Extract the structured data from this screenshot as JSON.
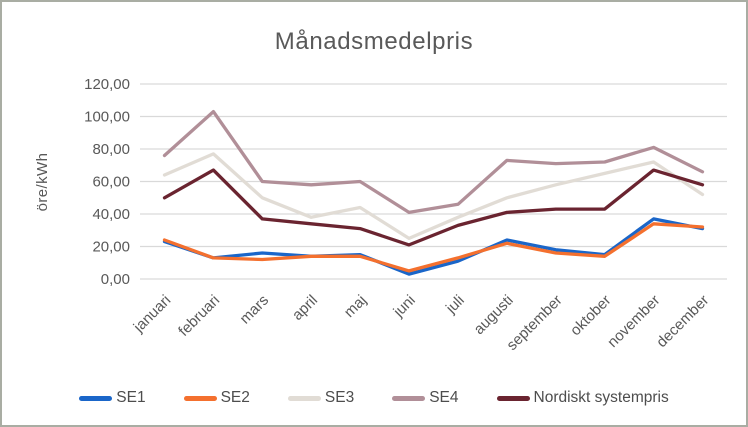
{
  "chart_data": {
    "type": "line",
    "title": "Månadsmedelpris",
    "ylabel": "öre/kWh",
    "categories": [
      "januari",
      "februari",
      "mars",
      "april",
      "maj",
      "juni",
      "juli",
      "augusti",
      "september",
      "oktober",
      "november",
      "december"
    ],
    "series": [
      {
        "name": "SE1",
        "color": "#1a66c9",
        "values": [
          23,
          13,
          16,
          14,
          15,
          3,
          11,
          24,
          18,
          15,
          37,
          31
        ]
      },
      {
        "name": "SE2",
        "color": "#f4702e",
        "values": [
          24,
          13,
          12,
          14,
          14,
          5,
          13,
          22,
          16,
          14,
          34,
          32
        ]
      },
      {
        "name": "SE3",
        "color": "#e1dcd5",
        "values": [
          64,
          77,
          50,
          38,
          44,
          25,
          38,
          50,
          58,
          65,
          72,
          52
        ]
      },
      {
        "name": "SE4",
        "color": "#b18f98",
        "values": [
          76,
          103,
          60,
          58,
          60,
          41,
          46,
          73,
          71,
          72,
          81,
          66
        ]
      },
      {
        "name": "Nordiskt systempris",
        "color": "#6a2430",
        "values": [
          50,
          67,
          37,
          34,
          31,
          21,
          33,
          41,
          43,
          43,
          67,
          58
        ]
      }
    ],
    "ylim": [
      0,
      120
    ],
    "ytick_step": 20,
    "ytick_labels": [
      "0,00",
      "20,00",
      "40,00",
      "60,00",
      "80,00",
      "100,00",
      "120,00"
    ],
    "xlabel": "",
    "grid": true,
    "x_label_rotation_deg": -45,
    "legend_position": "bottom"
  },
  "colors": {
    "grid": "#d9d9d9",
    "axis_text": "#595959",
    "title_text": "#595959",
    "legend_text": "#4d4d4d",
    "frame_border": "#a9ada3",
    "background": "#ffffff"
  }
}
